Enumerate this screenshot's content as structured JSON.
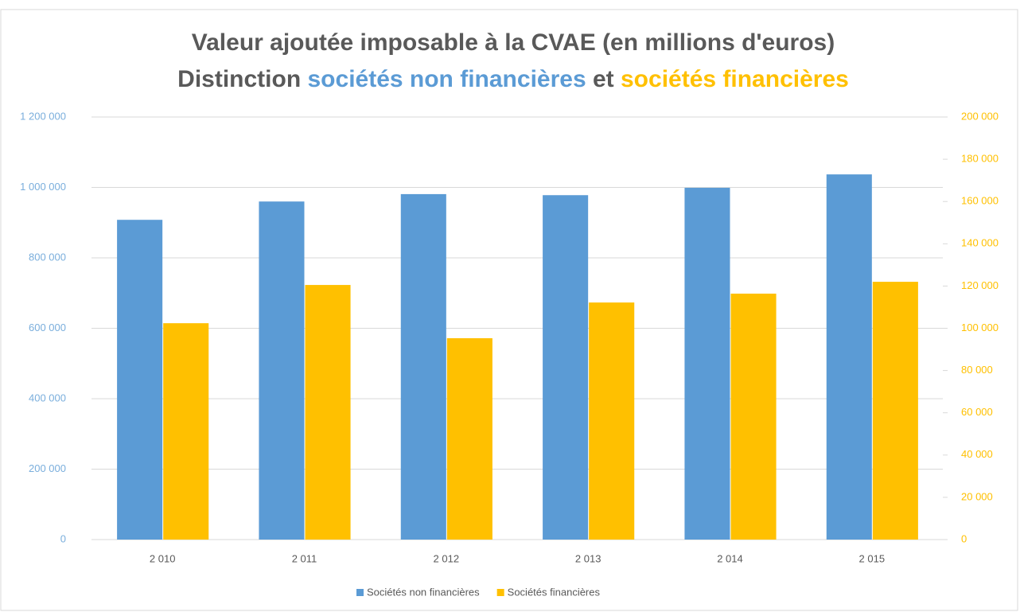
{
  "chart_data": {
    "type": "bar",
    "title": "Valeur ajoutée imposable à la CVAE (en millions d'euros)",
    "subtitle_parts": [
      {
        "text": "Distinction ",
        "color": "#595959"
      },
      {
        "text": "sociétés non financières",
        "color": "#5b9bd5"
      },
      {
        "text": " et ",
        "color": "#595959"
      },
      {
        "text": "sociétés financières",
        "color": "#ffc000"
      }
    ],
    "categories": [
      "2 010",
      "2 011",
      "2 012",
      "2 013",
      "2 014",
      "2 015"
    ],
    "series": [
      {
        "name": "Sociétés non financières",
        "color": "#5b9bd5",
        "values": [
          908000,
          960000,
          981000,
          978000,
          999000,
          1037000
        ]
      },
      {
        "name": "Sociétés financières",
        "color": "#ffc000",
        "axis": "y2",
        "values": [
          102400,
          120500,
          95300,
          112200,
          116400,
          122000
        ]
      }
    ],
    "ylim": [
      0,
      1200000
    ],
    "yticks": [
      0,
      {
        "value": 200000,
        "label": "200 000"
      },
      {
        "value": 400000,
        "label": "400 000"
      },
      {
        "value": 600000,
        "label": "600 000"
      },
      {
        "value": 800000,
        "label": "800 000"
      },
      {
        "value": 1000000,
        "label": "1 000 000"
      },
      {
        "value": 1200000,
        "label": "1 200 000"
      }
    ],
    "y2lim": [
      0,
      200000
    ],
    "y2ticks": [
      0,
      {
        "value": 20000,
        "label": "20 000"
      },
      {
        "value": 40000,
        "label": "40 000"
      },
      {
        "value": 60000,
        "label": "60 000"
      },
      {
        "value": 80000,
        "label": "80 000"
      },
      {
        "value": 100000,
        "label": "100 000"
      },
      {
        "value": 120000,
        "label": "120 000"
      },
      {
        "value": 140000,
        "label": "140 000"
      },
      {
        "value": 160000,
        "label": "160 000"
      },
      {
        "value": 180000,
        "label": "180 000"
      },
      {
        "value": 200000,
        "label": "200 000"
      }
    ],
    "grid": true,
    "legend": "bottom"
  }
}
